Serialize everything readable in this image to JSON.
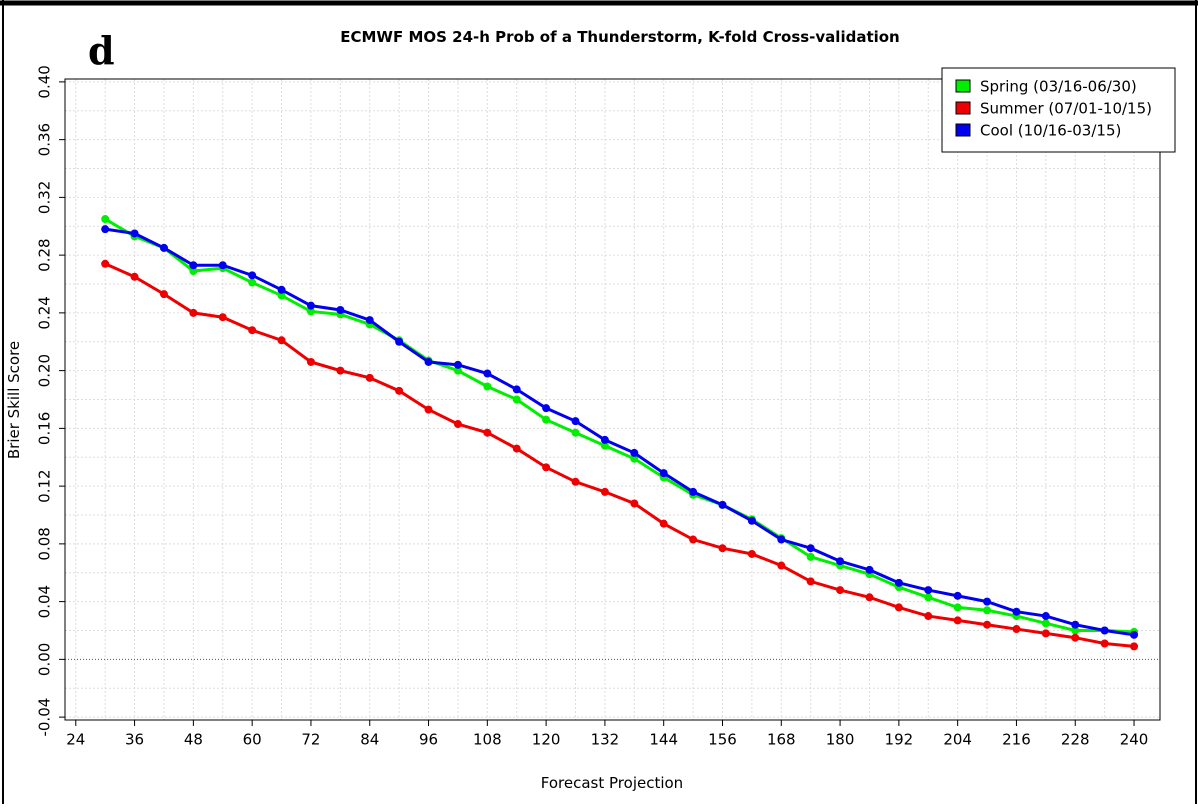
{
  "chart_data": {
    "type": "line",
    "panel_label": "d",
    "title": "ECMWF MOS 24-h Prob of a Thunderstorm, K-fold Cross-validation",
    "x_label": "Forecast Projection",
    "y_label": "Brier Skill Score",
    "x": [
      30,
      36,
      42,
      48,
      54,
      60,
      66,
      72,
      78,
      84,
      90,
      96,
      102,
      108,
      114,
      120,
      126,
      132,
      138,
      144,
      150,
      156,
      162,
      168,
      174,
      180,
      186,
      192,
      198,
      204,
      210,
      216,
      222,
      228,
      234,
      240
    ],
    "series": [
      {
        "name": "Spring (03/16-06/30)",
        "color": "#00ee00",
        "values": [
          0.305,
          0.293,
          0.285,
          0.269,
          0.271,
          0.261,
          0.252,
          0.241,
          0.239,
          0.232,
          0.221,
          0.207,
          0.2,
          0.189,
          0.18,
          0.166,
          0.157,
          0.148,
          0.139,
          0.126,
          0.114,
          0.107,
          0.097,
          0.084,
          0.071,
          0.065,
          0.059,
          0.05,
          0.043,
          0.036,
          0.034,
          0.03,
          0.025,
          0.02,
          0.02,
          0.019
        ]
      },
      {
        "name": "Summer (07/01-10/15)",
        "color": "#ee0000",
        "values": [
          0.274,
          0.265,
          0.253,
          0.24,
          0.237,
          0.228,
          0.221,
          0.206,
          0.2,
          0.195,
          0.186,
          0.173,
          0.163,
          0.157,
          0.146,
          0.133,
          0.123,
          0.116,
          0.108,
          0.094,
          0.083,
          0.077,
          0.073,
          0.065,
          0.054,
          0.048,
          0.043,
          0.036,
          0.03,
          0.027,
          0.024,
          0.021,
          0.018,
          0.015,
          0.011,
          0.009
        ]
      },
      {
        "name": "Cool (10/16-03/15)",
        "color": "#0000ee",
        "values": [
          0.298,
          0.295,
          0.285,
          0.273,
          0.273,
          0.266,
          0.256,
          0.245,
          0.242,
          0.235,
          0.22,
          0.206,
          0.204,
          0.198,
          0.187,
          0.174,
          0.165,
          0.152,
          0.143,
          0.129,
          0.116,
          0.107,
          0.096,
          0.083,
          0.077,
          0.068,
          0.062,
          0.053,
          0.048,
          0.044,
          0.04,
          0.033,
          0.03,
          0.024,
          0.02,
          0.017
        ]
      }
    ],
    "xlim": [
      21.8,
      245.3
    ],
    "xticks": [
      24,
      36,
      48,
      60,
      72,
      84,
      96,
      108,
      120,
      132,
      144,
      156,
      168,
      180,
      192,
      204,
      216,
      228,
      240
    ],
    "ylim": [
      -0.042,
      0.402
    ],
    "yticks": [
      -0.04,
      {
        "value": 0,
        "label": "0.00"
      },
      0.04,
      0.08,
      0.12,
      0.16,
      {
        "value": 0.2,
        "label": "0.20"
      },
      0.24,
      0.28,
      0.32,
      0.36,
      {
        "value": 0.4,
        "label": "0.40"
      }
    ],
    "grid": true,
    "legend": "upper right"
  }
}
